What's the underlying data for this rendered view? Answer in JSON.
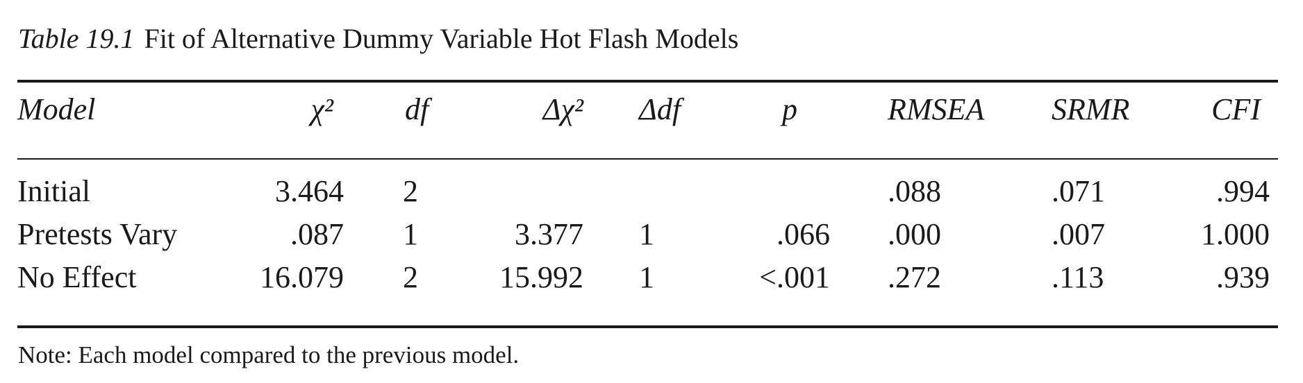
{
  "caption": {
    "label": "Table 19.1",
    "title": "Fit of Alternative Dummy Variable Hot Flash Models"
  },
  "table": {
    "headers": {
      "model": "Model",
      "chi2": "χ²",
      "df": "df",
      "delta_chi2": "Δχ²",
      "delta_df": "Δdf",
      "p": "p",
      "rmsea": "RMSEA",
      "srmr": "SRMR",
      "cfi": "CFI"
    },
    "rows": [
      {
        "model": "Initial",
        "chi2": "3.464",
        "df": "2",
        "delta_chi2": "",
        "delta_df": "",
        "p": "",
        "rmsea": ".088",
        "srmr": ".071",
        "cfi": ".994"
      },
      {
        "model": "Pretests Vary",
        "chi2": ".087",
        "df": "1",
        "delta_chi2": "3.377",
        "delta_df": "1",
        "p": ".066",
        "rmsea": ".000",
        "srmr": ".007",
        "cfi": "1.000"
      },
      {
        "model": "No Effect",
        "chi2": "16.079",
        "df": "2",
        "delta_chi2": "15.992",
        "delta_df": "1",
        "p": "<.001",
        "rmsea": ".272",
        "srmr": ".113",
        "cfi": ".939"
      }
    ]
  },
  "note": "Note: Each model compared to the previous model."
}
